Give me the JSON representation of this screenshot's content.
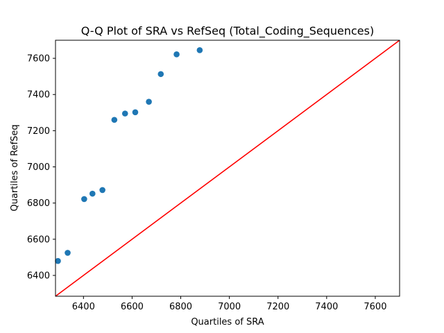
{
  "chart_data": {
    "type": "scatter",
    "title": "Q-Q Plot of SRA vs RefSeq (Total_Coding_Sequences)",
    "xlabel": "Quartiles of SRA",
    "ylabel": "Quartiles of RefSeq",
    "xlim": [
      6285,
      7700
    ],
    "ylim": [
      6285,
      7700
    ],
    "xticks": [
      6400,
      6600,
      6800,
      7000,
      7200,
      7400,
      7600
    ],
    "yticks": [
      6400,
      6600,
      6800,
      7000,
      7200,
      7400,
      7600
    ],
    "grid": false,
    "legend": "none",
    "series": [
      {
        "color": "#1f77b4",
        "x": [
          6295,
          6335,
          6403,
          6437,
          6478,
          6527,
          6571,
          6613,
          6669,
          6718,
          6783,
          6878
        ],
        "y": [
          6480,
          6525,
          6822,
          6852,
          6872,
          7260,
          7295,
          7302,
          7360,
          7513,
          7622,
          7645
        ]
      }
    ],
    "reference_line": {
      "color": "#ff0000",
      "x": [
        6285,
        7700
      ],
      "y": [
        6285,
        7700
      ]
    }
  }
}
